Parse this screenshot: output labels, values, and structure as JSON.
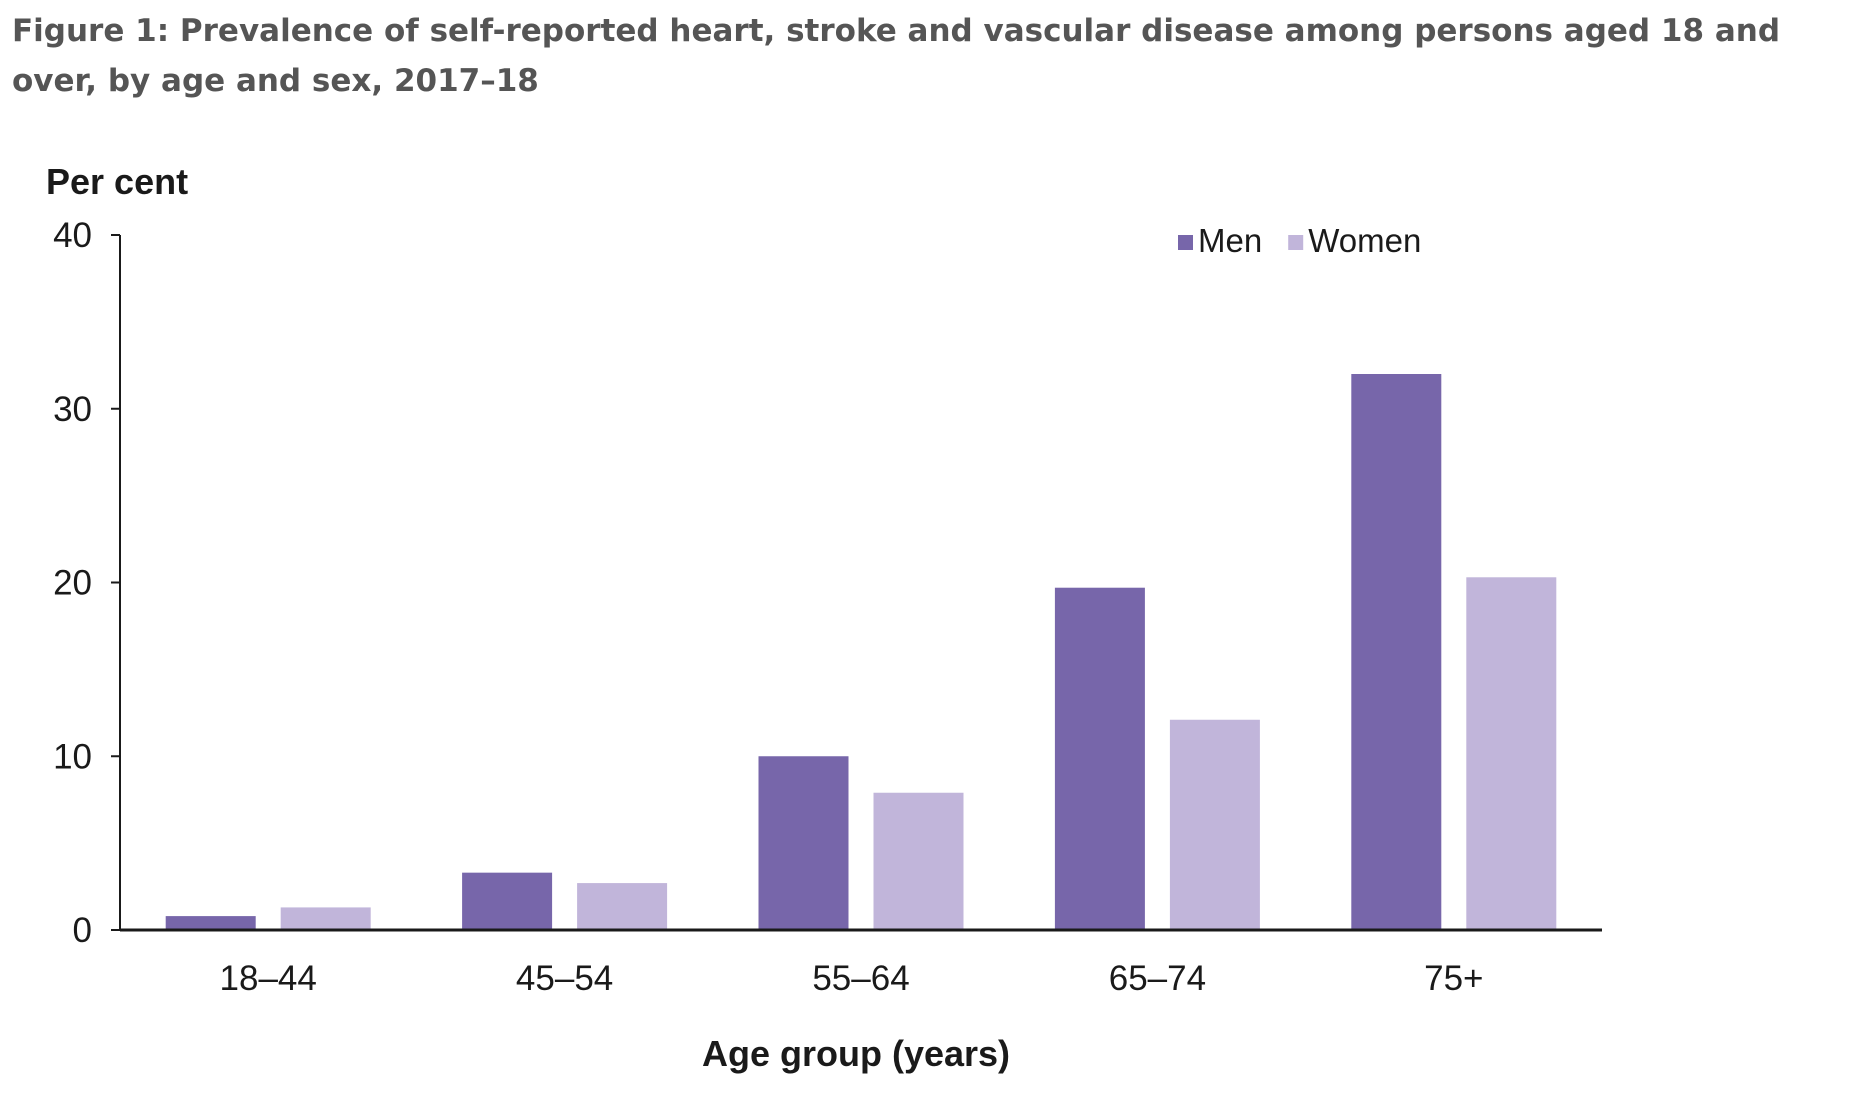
{
  "figure_title": "Figure 1: Prevalence of self-reported heart, stroke and vascular disease among persons aged 18 and over, by age and sex, 2017–18",
  "chart_data": {
    "type": "bar",
    "title": "Figure 1: Prevalence of self-reported heart, stroke and vascular disease among persons aged 18 and over, by age and sex, 2017–18",
    "xlabel": "Age group (years)",
    "ylabel": "Per cent",
    "ylim": [
      0,
      40
    ],
    "yticks": [
      "0",
      "10",
      "20",
      "30",
      "40"
    ],
    "categories": [
      "18–44",
      "45–54",
      "55–64",
      "65–74",
      "75+"
    ],
    "series": [
      {
        "name": "Men",
        "color": "#7766aa",
        "values": [
          0.8,
          3.3,
          10.0,
          19.7,
          32.0
        ]
      },
      {
        "name": "Women",
        "color": "#c1b5da",
        "values": [
          1.3,
          2.7,
          7.9,
          12.1,
          20.3
        ]
      }
    ],
    "grid": false,
    "legend_position": "top-right"
  }
}
